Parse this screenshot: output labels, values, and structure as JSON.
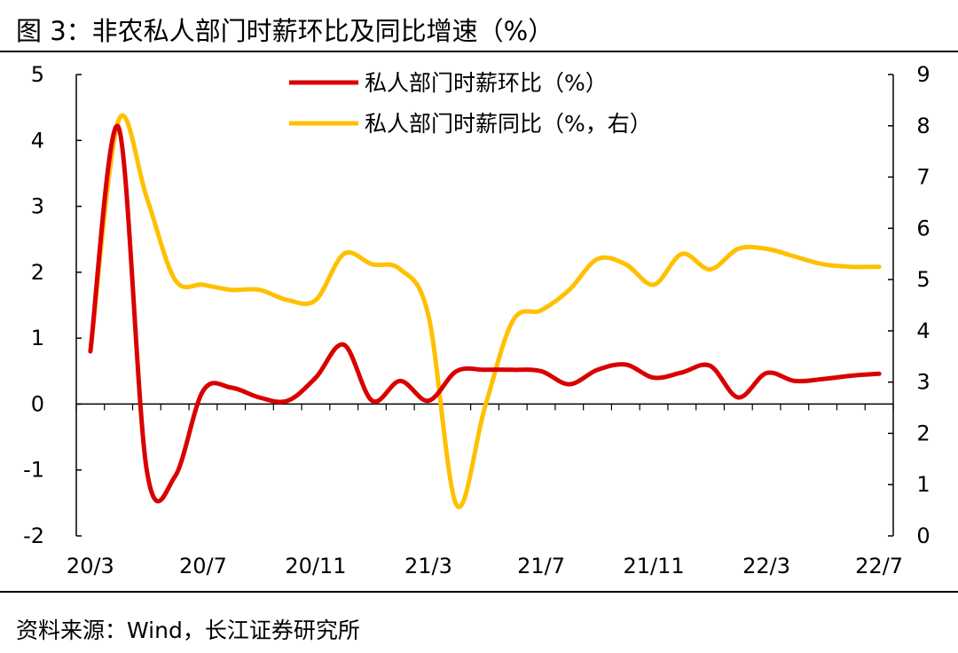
{
  "title": "图 3：非农私人部门时薪环比及同比增速（%）",
  "source": "资料来源：Wind，长江证券研究所",
  "chart_data": {
    "type": "line",
    "title": "图 3：非农私人部门时薪环比及同比增速（%）",
    "categories": [
      "20/3",
      "20/4",
      "20/5",
      "20/6",
      "20/7",
      "20/8",
      "20/9",
      "20/10",
      "20/11",
      "20/12",
      "21/1",
      "21/2",
      "21/3",
      "21/4",
      "21/5",
      "21/6",
      "21/7",
      "21/8",
      "21/9",
      "21/10",
      "21/11",
      "21/12",
      "22/1",
      "22/2",
      "22/3",
      "22/4",
      "22/5",
      "22/6",
      "22/7"
    ],
    "x_tick_labels": [
      "20/3",
      "20/7",
      "20/11",
      "21/3",
      "21/7",
      "21/11",
      "22/3",
      "22/7"
    ],
    "y_left": {
      "lim": [
        -2,
        5
      ],
      "ticks": [
        "-2",
        "-1",
        "0",
        "1",
        "2",
        "3",
        "4",
        "5"
      ]
    },
    "y_right": {
      "lim": [
        0,
        9
      ],
      "ticks": [
        "0",
        "1",
        "2",
        "3",
        "4",
        "5",
        "6",
        "7",
        "8",
        "9"
      ]
    },
    "series": [
      {
        "name": "私人部门时薪环比（%）",
        "axis": "left",
        "color": "#d90000",
        "values": [
          0.8,
          4.2,
          -1.0,
          -1.1,
          0.2,
          0.25,
          0.1,
          0.05,
          0.4,
          0.9,
          0.05,
          0.35,
          0.05,
          0.5,
          0.52,
          0.52,
          0.5,
          0.3,
          0.52,
          0.6,
          0.4,
          0.48,
          0.58,
          0.1,
          0.47,
          0.35,
          0.38,
          0.43,
          0.46
        ]
      },
      {
        "name": "私人部门时薪同比（%，右）",
        "axis": "right",
        "color": "#ffc000",
        "values": [
          3.6,
          8.1,
          6.6,
          5.0,
          4.9,
          4.8,
          4.8,
          4.6,
          4.6,
          5.5,
          5.3,
          5.2,
          4.3,
          0.6,
          2.5,
          4.2,
          4.4,
          4.8,
          5.4,
          5.3,
          4.9,
          5.5,
          5.2,
          5.6,
          5.6,
          5.45,
          5.3,
          5.25,
          5.25
        ]
      }
    ]
  }
}
